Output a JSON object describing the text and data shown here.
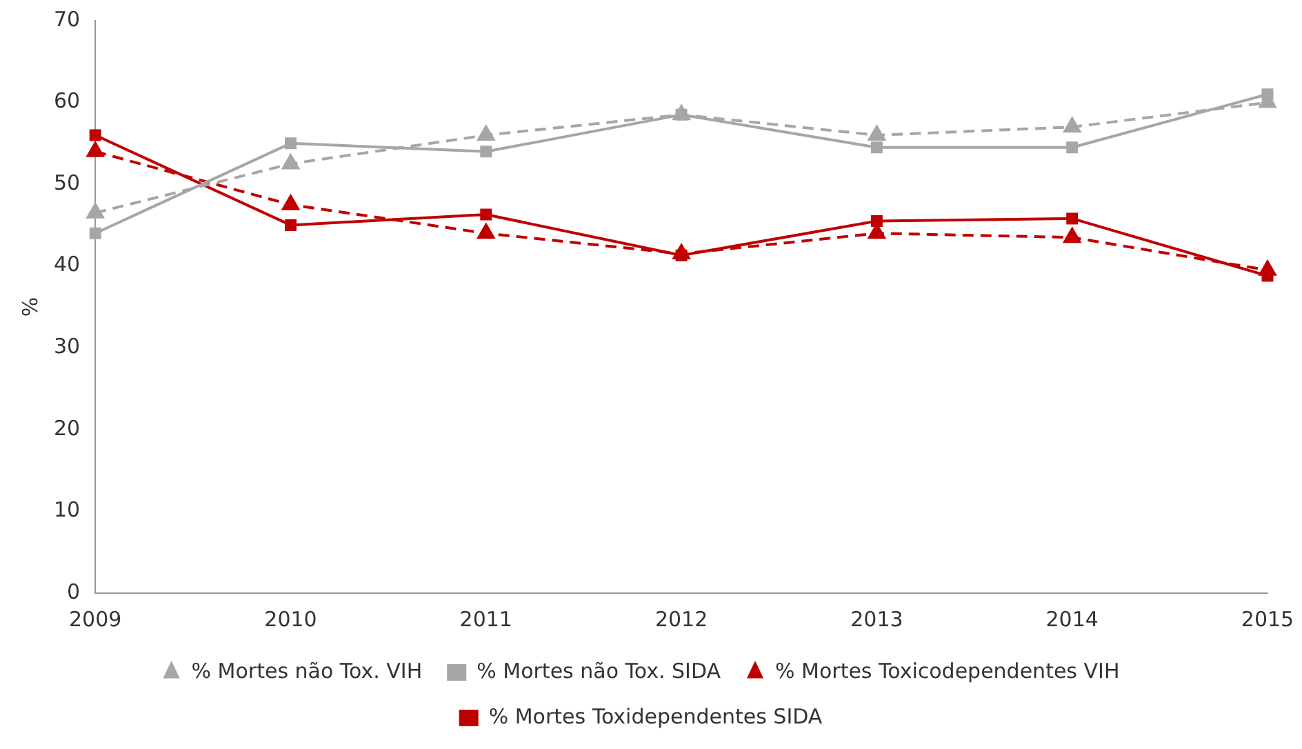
{
  "chart_data": {
    "type": "line",
    "ylabel": "%",
    "categories": [
      "2009",
      "2010",
      "2011",
      "2012",
      "2013",
      "2014",
      "2015"
    ],
    "ylim": [
      0,
      70
    ],
    "yticks": [
      0,
      10,
      20,
      30,
      40,
      50,
      60,
      70
    ],
    "grid": false,
    "legend": "bottom",
    "series": [
      {
        "name": "% Mortes não Tox. VIH",
        "color": "#a6a6a6",
        "line_style": "dashed",
        "marker": "triangle",
        "values": [
          46.5,
          52.5,
          56,
          58.5,
          56,
          57,
          60
        ]
      },
      {
        "name": "% Mortes não Tox. SIDA",
        "color": "#a6a6a6",
        "line_style": "solid",
        "marker": "square",
        "values": [
          44,
          55,
          54,
          58.5,
          54.5,
          54.5,
          61
        ]
      },
      {
        "name": "% Mortes Toxicodependentes VIH",
        "color": "#c00000",
        "line_style": "dashed",
        "marker": "triangle",
        "values": [
          54,
          47.5,
          44,
          41.5,
          44,
          43.5,
          39.5
        ]
      },
      {
        "name": "% Mortes Toxidependentes SIDA",
        "color": "#c00000",
        "line_style": "solid",
        "marker": "square",
        "values": [
          56,
          45,
          46.3,
          41.3,
          45.5,
          45.8,
          38.8
        ]
      }
    ]
  }
}
